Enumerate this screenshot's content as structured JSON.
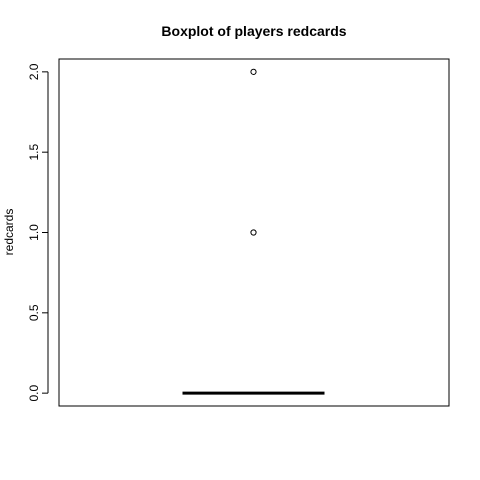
{
  "chart_data": {
    "type": "boxplot",
    "title": "Boxplot of players redcards",
    "xlabel": "",
    "ylabel": "redcards",
    "ylim": [
      -0.08,
      2.08
    ],
    "y_ticks": [
      0.0,
      0.5,
      1.0,
      1.5,
      2.0
    ],
    "y_tick_labels": [
      "0.0",
      "0.5",
      "1.0",
      "1.5",
      "2.0"
    ],
    "grid": false,
    "legend": "none",
    "box": {
      "min": 0,
      "q1": 0,
      "median": 0,
      "q3": 0,
      "max": 0
    },
    "outliers": [
      1,
      2
    ],
    "colors": {
      "axis": "#000000",
      "median": "#000000",
      "outlier": "#000000",
      "background": "#ffffff"
    }
  }
}
